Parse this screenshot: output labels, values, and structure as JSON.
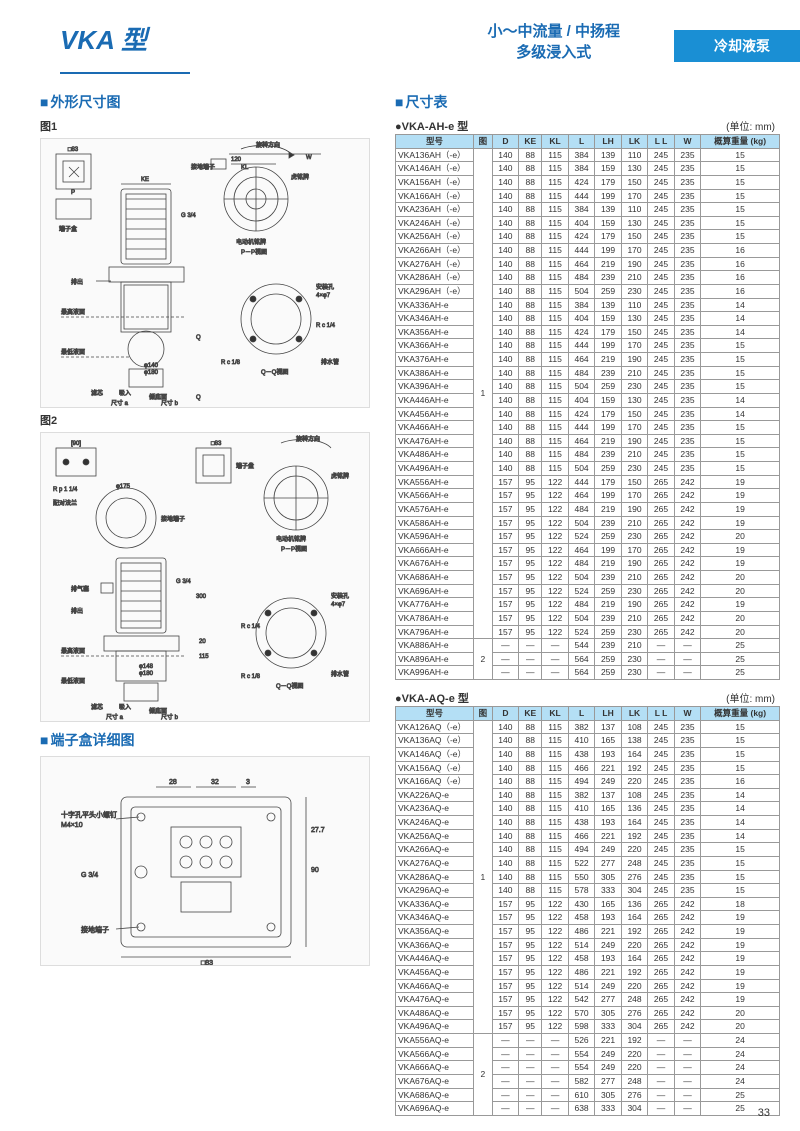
{
  "header": {
    "model": "VKA 型",
    "subtitle_line1": "小～中流量 / 中扬程",
    "subtitle_line2": "多级浸入式",
    "banner": "冷却液泵"
  },
  "sections": {
    "outline": "外形尺寸图",
    "fig1": "图1",
    "fig2": "图2",
    "terminal": "端子盒详细图",
    "dimtable": "尺寸表"
  },
  "table1": {
    "title": "●VKA-AH-e 型",
    "unit": "(单位: mm)",
    "columns": [
      "型号",
      "图",
      "D",
      "KE",
      "KL",
      "L",
      "LH",
      "LK",
      "L L",
      "W",
      "概算重量 (kg)"
    ],
    "rows": [
      [
        "VKA136AH（-e）",
        "",
        "140",
        "88",
        "115",
        "384",
        "139",
        "110",
        "245",
        "235",
        "15"
      ],
      [
        "VKA146AH（-e）",
        "",
        "140",
        "88",
        "115",
        "384",
        "159",
        "130",
        "245",
        "235",
        "15"
      ],
      [
        "VKA156AH（-e）",
        "",
        "140",
        "88",
        "115",
        "424",
        "179",
        "150",
        "245",
        "235",
        "15"
      ],
      [
        "VKA166AH（-e）",
        "",
        "140",
        "88",
        "115",
        "444",
        "199",
        "170",
        "245",
        "235",
        "15"
      ],
      [
        "VKA236AH（-e）",
        "",
        "140",
        "88",
        "115",
        "384",
        "139",
        "110",
        "245",
        "235",
        "15"
      ],
      [
        "VKA246AH（-e）",
        "",
        "140",
        "88",
        "115",
        "404",
        "159",
        "130",
        "245",
        "235",
        "15"
      ],
      [
        "VKA256AH（-e）",
        "",
        "140",
        "88",
        "115",
        "424",
        "179",
        "150",
        "245",
        "235",
        "15"
      ],
      [
        "VKA266AH（-e）",
        "",
        "140",
        "88",
        "115",
        "444",
        "199",
        "170",
        "245",
        "235",
        "16"
      ],
      [
        "VKA276AH（-e）",
        "",
        "140",
        "88",
        "115",
        "464",
        "219",
        "190",
        "245",
        "235",
        "16"
      ],
      [
        "VKA286AH（-e）",
        "",
        "140",
        "88",
        "115",
        "484",
        "239",
        "210",
        "245",
        "235",
        "16"
      ],
      [
        "VKA296AH（-e）",
        "",
        "140",
        "88",
        "115",
        "504",
        "259",
        "230",
        "245",
        "235",
        "16"
      ],
      [
        "VKA336AH-e",
        "",
        "140",
        "88",
        "115",
        "384",
        "139",
        "110",
        "245",
        "235",
        "14"
      ],
      [
        "VKA346AH-e",
        "",
        "140",
        "88",
        "115",
        "404",
        "159",
        "130",
        "245",
        "235",
        "14"
      ],
      [
        "VKA356AH-e",
        "",
        "140",
        "88",
        "115",
        "424",
        "179",
        "150",
        "245",
        "235",
        "14"
      ],
      [
        "VKA366AH-e",
        "",
        "140",
        "88",
        "115",
        "444",
        "199",
        "170",
        "245",
        "235",
        "15"
      ],
      [
        "VKA376AH-e",
        "",
        "140",
        "88",
        "115",
        "464",
        "219",
        "190",
        "245",
        "235",
        "15"
      ],
      [
        "VKA386AH-e",
        "",
        "140",
        "88",
        "115",
        "484",
        "239",
        "210",
        "245",
        "235",
        "15"
      ],
      [
        "VKA396AH-e",
        "1",
        "140",
        "88",
        "115",
        "504",
        "259",
        "230",
        "245",
        "235",
        "15"
      ],
      [
        "VKA446AH-e",
        "",
        "140",
        "88",
        "115",
        "404",
        "159",
        "130",
        "245",
        "235",
        "14"
      ],
      [
        "VKA456AH-e",
        "",
        "140",
        "88",
        "115",
        "424",
        "179",
        "150",
        "245",
        "235",
        "14"
      ],
      [
        "VKA466AH-e",
        "",
        "140",
        "88",
        "115",
        "444",
        "199",
        "170",
        "245",
        "235",
        "15"
      ],
      [
        "VKA476AH-e",
        "",
        "140",
        "88",
        "115",
        "464",
        "219",
        "190",
        "245",
        "235",
        "15"
      ],
      [
        "VKA486AH-e",
        "",
        "140",
        "88",
        "115",
        "484",
        "239",
        "210",
        "245",
        "235",
        "15"
      ],
      [
        "VKA496AH-e",
        "",
        "140",
        "88",
        "115",
        "504",
        "259",
        "230",
        "245",
        "235",
        "15"
      ],
      [
        "VKA556AH-e",
        "",
        "157",
        "95",
        "122",
        "444",
        "179",
        "150",
        "265",
        "242",
        "19"
      ],
      [
        "VKA566AH-e",
        "",
        "157",
        "95",
        "122",
        "464",
        "199",
        "170",
        "265",
        "242",
        "19"
      ],
      [
        "VKA576AH-e",
        "",
        "157",
        "95",
        "122",
        "484",
        "219",
        "190",
        "265",
        "242",
        "19"
      ],
      [
        "VKA586AH-e",
        "",
        "157",
        "95",
        "122",
        "504",
        "239",
        "210",
        "265",
        "242",
        "19"
      ],
      [
        "VKA596AH-e",
        "",
        "157",
        "95",
        "122",
        "524",
        "259",
        "230",
        "265",
        "242",
        "20"
      ],
      [
        "VKA666AH-e",
        "",
        "157",
        "95",
        "122",
        "464",
        "199",
        "170",
        "265",
        "242",
        "19"
      ],
      [
        "VKA676AH-e",
        "",
        "157",
        "95",
        "122",
        "484",
        "219",
        "190",
        "265",
        "242",
        "19"
      ],
      [
        "VKA686AH-e",
        "",
        "157",
        "95",
        "122",
        "504",
        "239",
        "210",
        "265",
        "242",
        "20"
      ],
      [
        "VKA696AH-e",
        "",
        "157",
        "95",
        "122",
        "524",
        "259",
        "230",
        "265",
        "242",
        "20"
      ],
      [
        "VKA776AH-e",
        "",
        "157",
        "95",
        "122",
        "484",
        "219",
        "190",
        "265",
        "242",
        "19"
      ],
      [
        "VKA786AH-e",
        "",
        "157",
        "95",
        "122",
        "504",
        "239",
        "210",
        "265",
        "242",
        "20"
      ],
      [
        "VKA796AH-e",
        "",
        "157",
        "95",
        "122",
        "524",
        "259",
        "230",
        "265",
        "242",
        "20"
      ],
      [
        "VKA886AH-e",
        "2",
        "—",
        "—",
        "—",
        "544",
        "239",
        "210",
        "—",
        "—",
        "25"
      ],
      [
        "VKA896AH-e",
        "",
        "—",
        "—",
        "—",
        "564",
        "259",
        "230",
        "—",
        "—",
        "25"
      ],
      [
        "VKA996AH-e",
        "",
        "—",
        "—",
        "—",
        "564",
        "259",
        "230",
        "—",
        "—",
        "25"
      ]
    ],
    "fig_rowspans": {
      "0": 36,
      "36": 3
    }
  },
  "table2": {
    "title": "●VKA-AQ-e 型",
    "unit": "(单位: mm)",
    "columns": [
      "型号",
      "图",
      "D",
      "KE",
      "KL",
      "L",
      "LH",
      "LK",
      "L L",
      "W",
      "概算重量 (kg)"
    ],
    "rows": [
      [
        "VKA126AQ（-e）",
        "",
        "140",
        "88",
        "115",
        "382",
        "137",
        "108",
        "245",
        "235",
        "15"
      ],
      [
        "VKA136AQ（-e）",
        "",
        "140",
        "88",
        "115",
        "410",
        "165",
        "138",
        "245",
        "235",
        "15"
      ],
      [
        "VKA146AQ（-e）",
        "",
        "140",
        "88",
        "115",
        "438",
        "193",
        "164",
        "245",
        "235",
        "15"
      ],
      [
        "VKA156AQ（-e）",
        "",
        "140",
        "88",
        "115",
        "466",
        "221",
        "192",
        "245",
        "235",
        "15"
      ],
      [
        "VKA166AQ（-e）",
        "",
        "140",
        "88",
        "115",
        "494",
        "249",
        "220",
        "245",
        "235",
        "16"
      ],
      [
        "VKA226AQ-e",
        "",
        "140",
        "88",
        "115",
        "382",
        "137",
        "108",
        "245",
        "235",
        "14"
      ],
      [
        "VKA236AQ-e",
        "",
        "140",
        "88",
        "115",
        "410",
        "165",
        "136",
        "245",
        "235",
        "14"
      ],
      [
        "VKA246AQ-e",
        "",
        "140",
        "88",
        "115",
        "438",
        "193",
        "164",
        "245",
        "235",
        "14"
      ],
      [
        "VKA256AQ-e",
        "",
        "140",
        "88",
        "115",
        "466",
        "221",
        "192",
        "245",
        "235",
        "14"
      ],
      [
        "VKA266AQ-e",
        "",
        "140",
        "88",
        "115",
        "494",
        "249",
        "220",
        "245",
        "235",
        "15"
      ],
      [
        "VKA276AQ-e",
        "",
        "140",
        "88",
        "115",
        "522",
        "277",
        "248",
        "245",
        "235",
        "15"
      ],
      [
        "VKA286AQ-e",
        "1",
        "140",
        "88",
        "115",
        "550",
        "305",
        "276",
        "245",
        "235",
        "15"
      ],
      [
        "VKA296AQ-e",
        "",
        "140",
        "88",
        "115",
        "578",
        "333",
        "304",
        "245",
        "235",
        "15"
      ],
      [
        "VKA336AQ-e",
        "",
        "157",
        "95",
        "122",
        "430",
        "165",
        "136",
        "265",
        "242",
        "18"
      ],
      [
        "VKA346AQ-e",
        "",
        "157",
        "95",
        "122",
        "458",
        "193",
        "164",
        "265",
        "242",
        "19"
      ],
      [
        "VKA356AQ-e",
        "",
        "157",
        "95",
        "122",
        "486",
        "221",
        "192",
        "265",
        "242",
        "19"
      ],
      [
        "VKA366AQ-e",
        "",
        "157",
        "95",
        "122",
        "514",
        "249",
        "220",
        "265",
        "242",
        "19"
      ],
      [
        "VKA446AQ-e",
        "",
        "157",
        "95",
        "122",
        "458",
        "193",
        "164",
        "265",
        "242",
        "19"
      ],
      [
        "VKA456AQ-e",
        "",
        "157",
        "95",
        "122",
        "486",
        "221",
        "192",
        "265",
        "242",
        "19"
      ],
      [
        "VKA466AQ-e",
        "",
        "157",
        "95",
        "122",
        "514",
        "249",
        "220",
        "265",
        "242",
        "19"
      ],
      [
        "VKA476AQ-e",
        "",
        "157",
        "95",
        "122",
        "542",
        "277",
        "248",
        "265",
        "242",
        "19"
      ],
      [
        "VKA486AQ-e",
        "",
        "157",
        "95",
        "122",
        "570",
        "305",
        "276",
        "265",
        "242",
        "20"
      ],
      [
        "VKA496AQ-e",
        "",
        "157",
        "95",
        "122",
        "598",
        "333",
        "304",
        "265",
        "242",
        "20"
      ],
      [
        "VKA556AQ-e",
        "",
        "—",
        "—",
        "—",
        "526",
        "221",
        "192",
        "—",
        "—",
        "24"
      ],
      [
        "VKA566AQ-e",
        "",
        "—",
        "—",
        "—",
        "554",
        "249",
        "220",
        "—",
        "—",
        "24"
      ],
      [
        "VKA666AQ-e",
        "2",
        "—",
        "—",
        "—",
        "554",
        "249",
        "220",
        "—",
        "—",
        "24"
      ],
      [
        "VKA676AQ-e",
        "",
        "—",
        "—",
        "—",
        "582",
        "277",
        "248",
        "—",
        "—",
        "24"
      ],
      [
        "VKA686AQ-e",
        "",
        "—",
        "—",
        "—",
        "610",
        "305",
        "276",
        "—",
        "—",
        "25"
      ],
      [
        "VKA696AQ-e",
        "",
        "—",
        "—",
        "—",
        "638",
        "333",
        "304",
        "—",
        "—",
        "25"
      ]
    ],
    "fig_rowspans": {
      "0": 23,
      "23": 6
    }
  },
  "page": "33",
  "diagram_labels": {
    "fig1": [
      "□83",
      "P",
      "KE",
      "G 3/4",
      "虎铭牌",
      "电动机铭牌",
      "P－P视图",
      "接地端子",
      "端子盒",
      "φ140±0.6",
      "φ180",
      "排出",
      "吸入",
      "最高液面",
      "最低液面",
      "滤芯",
      "储底面",
      "排水管",
      "R c 1/4",
      "安装孔 4×φ7",
      "R c 1/8",
      "W",
      "Q",
      "Q",
      "Q－Q视图",
      "120",
      "KL",
      "尺寸 a",
      "尺寸 b",
      "旋转方向"
    ],
    "fig2": [
      "[90]",
      "□83",
      "R p 1 1/4",
      "配对法兰",
      "φ175",
      "G 3/4",
      "300",
      "排气塞",
      "排出",
      "吸入",
      "最高液面",
      "最低液面",
      "滤芯",
      "储底面",
      "φ148±0.5",
      "φ180",
      "20",
      "115",
      "尺寸 a",
      "尺寸 b",
      "安装孔 4×φ7",
      "R c 1/4",
      "R c 1/8",
      "排水管",
      "电动机铭牌",
      "虎铭牌",
      "P－P视图",
      "Q－Q视图",
      "接地端子",
      "端子盘",
      "旋转方向"
    ],
    "terminal": [
      "28",
      "32",
      "3",
      "十字孔平头小螺钉 M4×10",
      "接地端子",
      "G 3/4",
      "□83",
      "90",
      "27.7"
    ]
  }
}
